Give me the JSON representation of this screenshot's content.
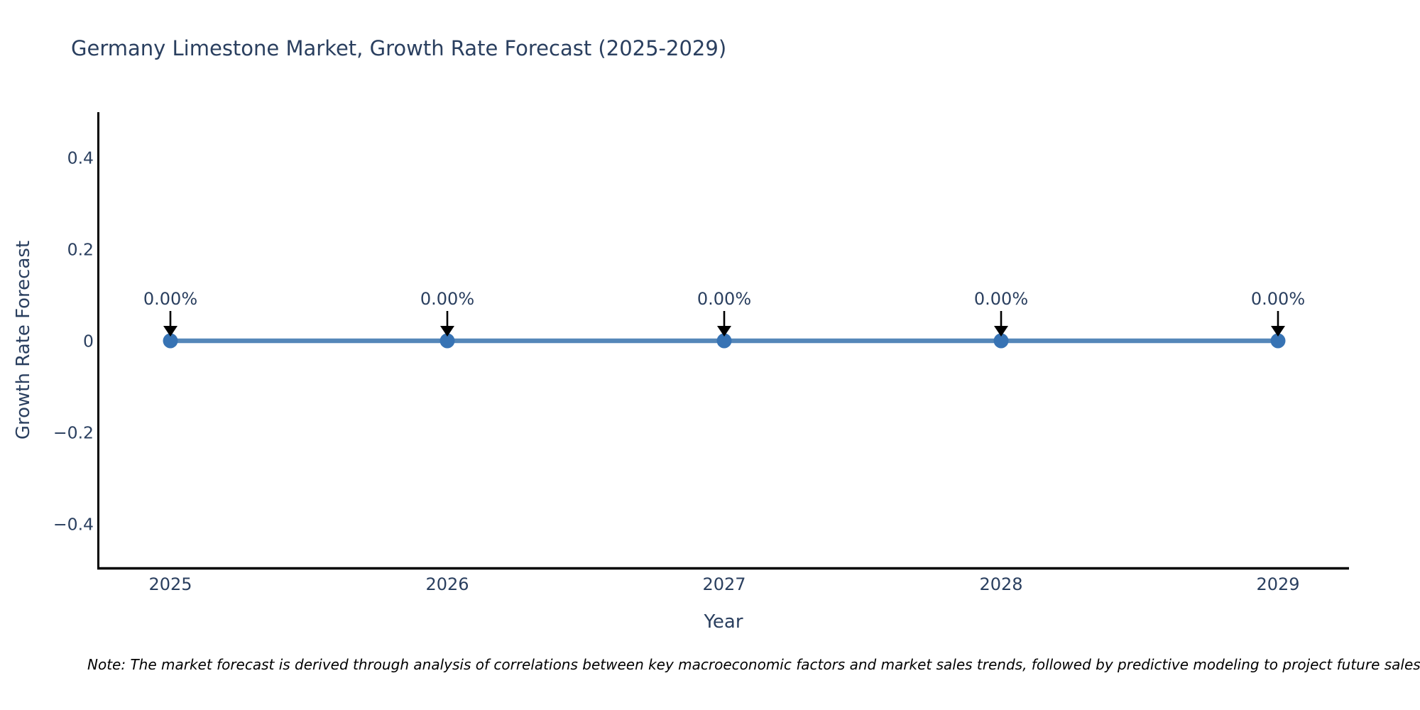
{
  "title": {
    "text": "Germany Limestone Market, Growth Rate Forecast (2025-2029)"
  },
  "note": {
    "text": "Note: The market forecast is derived through analysis of correlations between key macroeconomic factors and market sales trends, followed by predictive modeling to project future sales."
  },
  "colors": {
    "text": "#2a3f5f",
    "axis_line": "#000000",
    "trace_line": "#5587b9",
    "marker_fill": "#3773b4",
    "arrow": "#000000",
    "note_text": "#000000",
    "background": "#ffffff"
  },
  "chart_data": {
    "type": "line",
    "title": "Germany Limestone Market, Growth Rate Forecast (2025-2029)",
    "xlabel": "Year",
    "ylabel": "Growth Rate Forecast",
    "x": [
      2025,
      2026,
      2027,
      2028,
      2029
    ],
    "y": [
      0,
      0,
      0,
      0,
      0
    ],
    "x_tick_labels": [
      "2025",
      "2026",
      "2027",
      "2028",
      "2029"
    ],
    "y_tick_values": [
      0.4,
      0.2,
      0,
      -0.2,
      -0.4
    ],
    "y_tick_labels": [
      "0.4",
      "0.2",
      "0",
      "−0.2",
      "−0.4"
    ],
    "ylim": [
      -0.5,
      0.5
    ],
    "grid": false,
    "legend": "none",
    "markers": true,
    "annotations": [
      "0.00%",
      "0.00%",
      "0.00%",
      "0.00%",
      "0.00%"
    ],
    "annotation_arrow": "down"
  }
}
